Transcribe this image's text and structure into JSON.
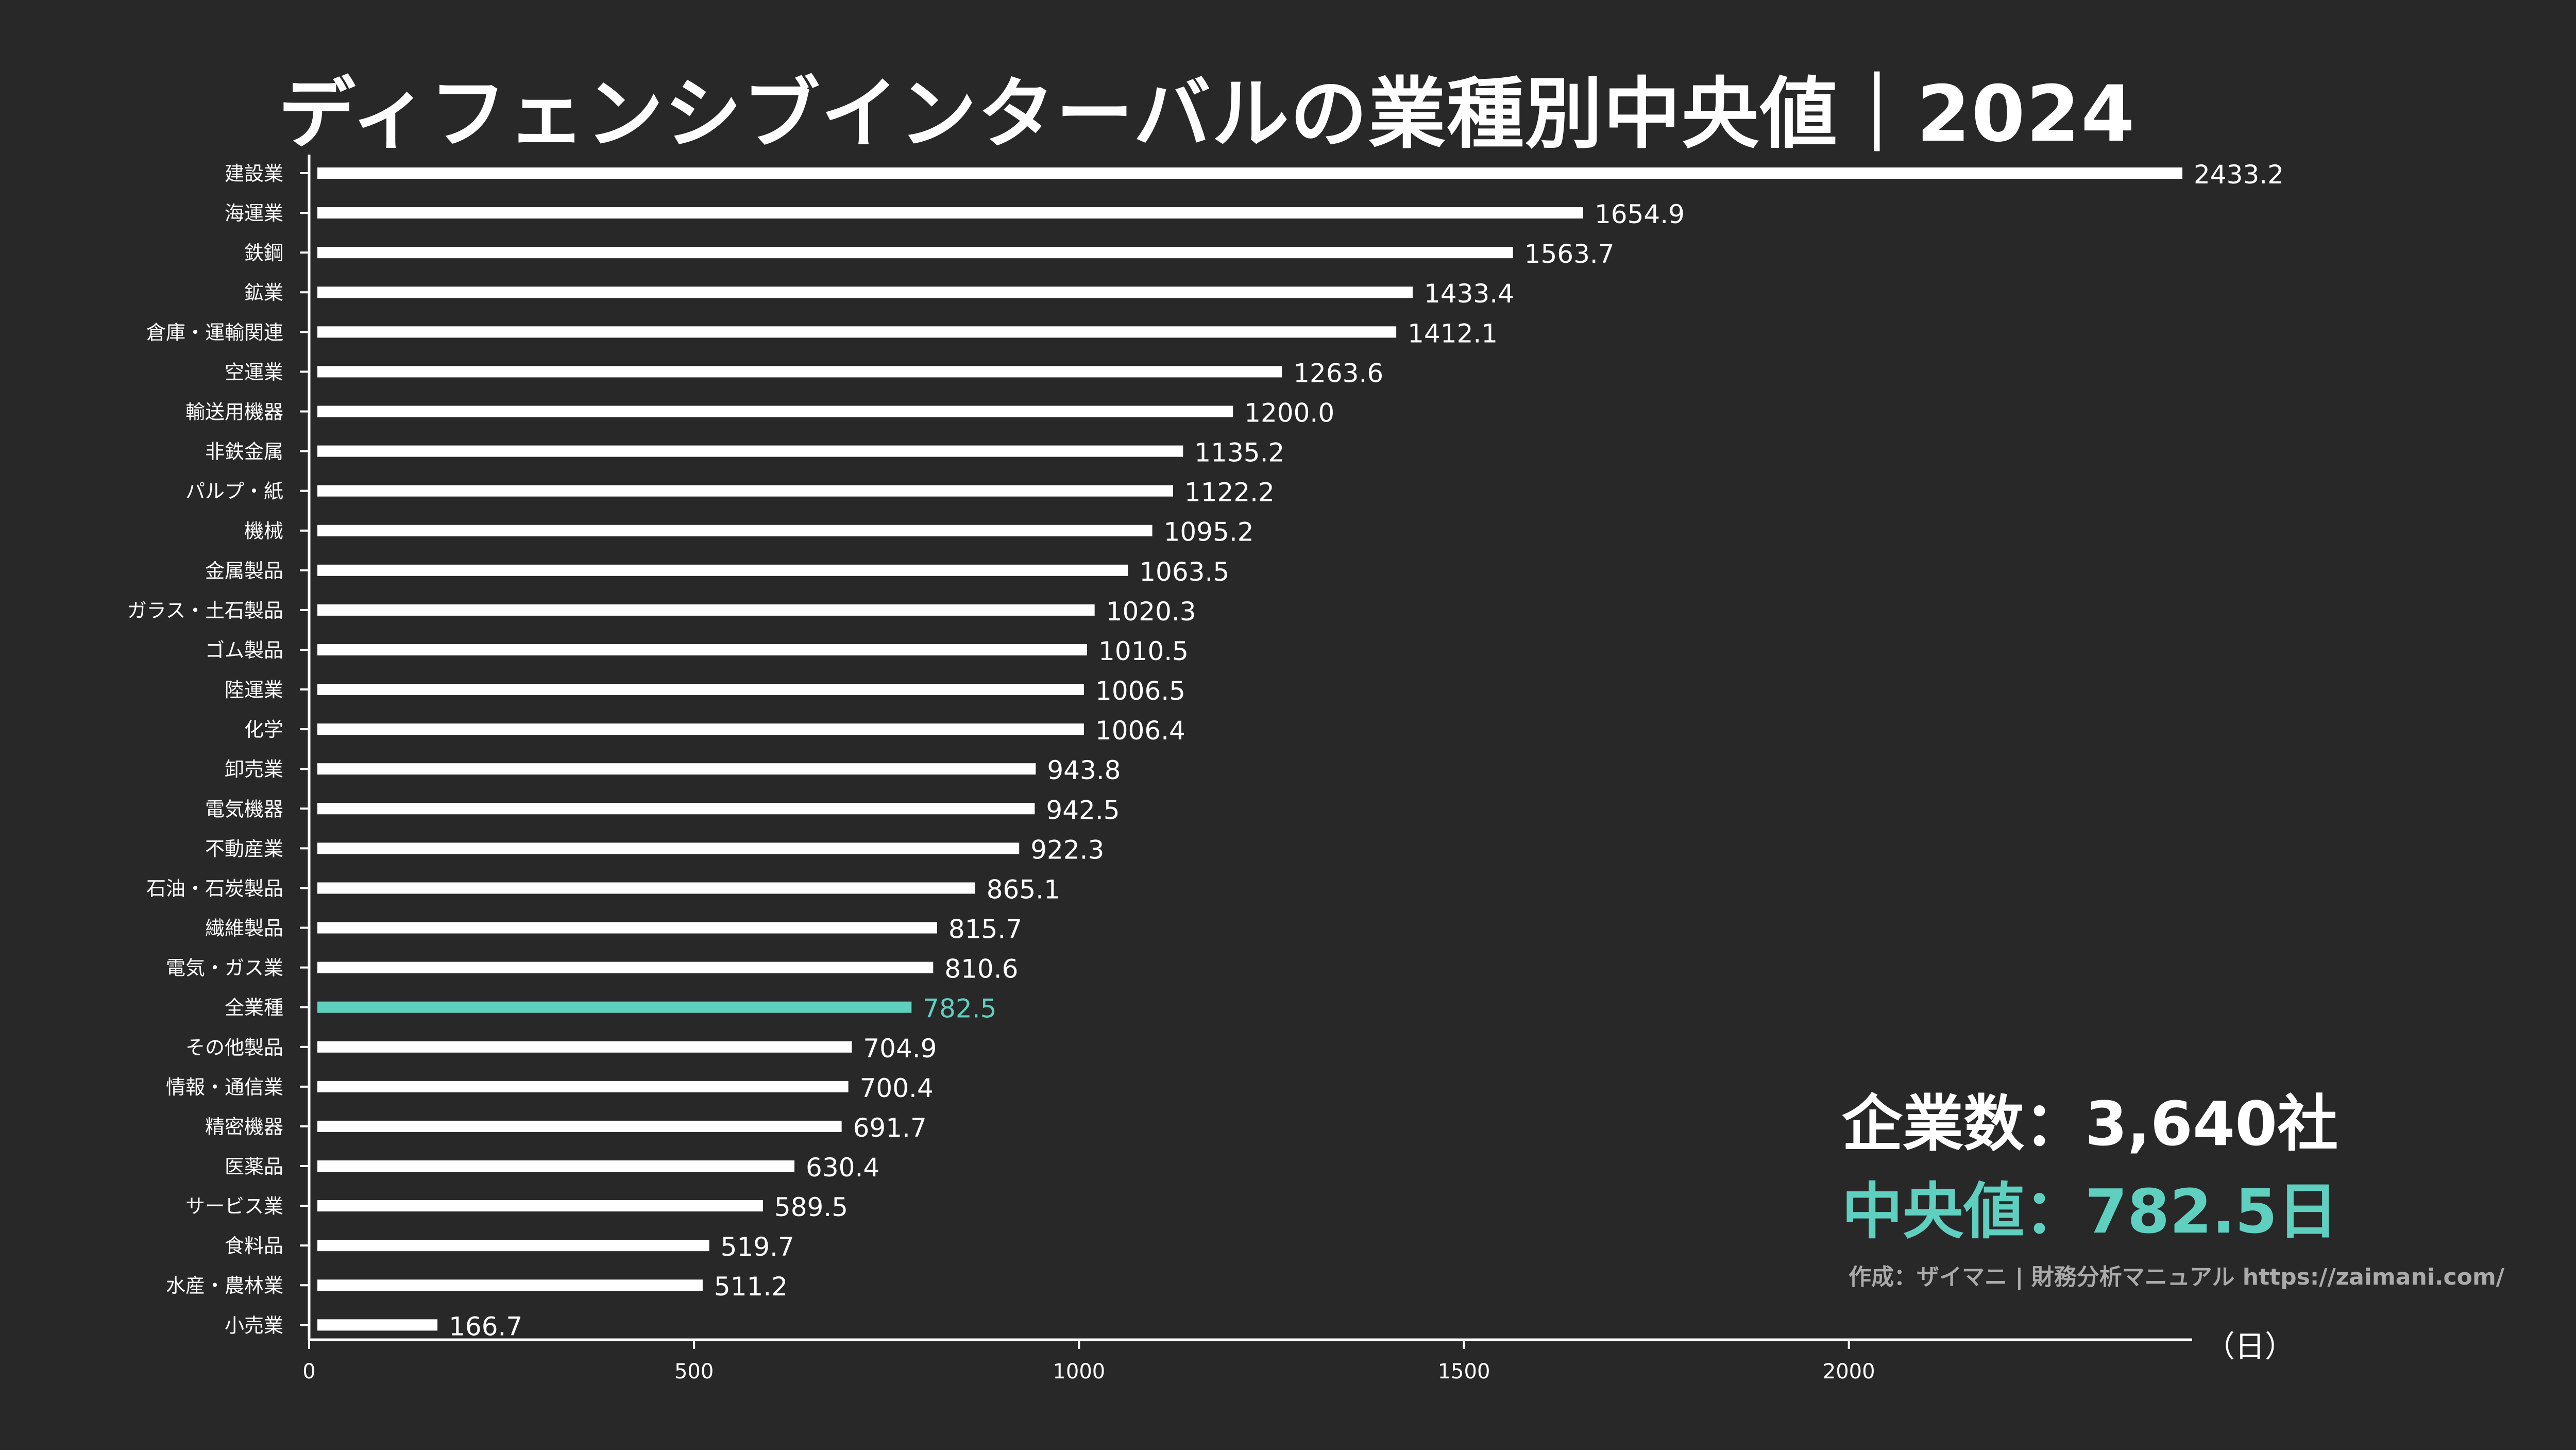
{
  "title": "ディフェンシブインターバルの業種別中央値｜2024",
  "summary": {
    "company_count": "企業数：3,640社",
    "median": "中央値：782.5日"
  },
  "credit": "作成：ザイマニ | 財務分析マニュアル https://zaimani.com/",
  "unit_label": "（日）",
  "colors": {
    "background": "#282828",
    "bar": "#ffffff",
    "highlight": "#5fcfc0",
    "text": "#ffffff"
  },
  "chart_data": {
    "type": "bar",
    "orientation": "horizontal",
    "title": "ディフェンシブインターバルの業種別中央値｜2024",
    "xlabel": "（日）",
    "ylabel": "",
    "xlim": [
      0,
      2433.2
    ],
    "xticks": [
      0,
      500,
      1000,
      1500,
      2000
    ],
    "highlight_category": "全業種",
    "categories": [
      "建設業",
      "海運業",
      "鉄鋼",
      "鉱業",
      "倉庫・運輸関連",
      "空運業",
      "輸送用機器",
      "非鉄金属",
      "パルプ・紙",
      "機械",
      "金属製品",
      "ガラス・土石製品",
      "ゴム製品",
      "陸運業",
      "化学",
      "卸売業",
      "電気機器",
      "不動産業",
      "石油・石炭製品",
      "繊維製品",
      "電気・ガス業",
      "全業種",
      "その他製品",
      "情報・通信業",
      "精密機器",
      "医薬品",
      "サービス業",
      "食料品",
      "水産・農林業",
      "小売業"
    ],
    "values": [
      2433.2,
      1654.9,
      1563.7,
      1433.4,
      1412.1,
      1263.6,
      1200.0,
      1135.2,
      1122.2,
      1095.2,
      1063.5,
      1020.3,
      1010.5,
      1006.5,
      1006.4,
      943.8,
      942.5,
      922.3,
      865.1,
      815.7,
      810.6,
      782.5,
      704.9,
      700.4,
      691.7,
      630.4,
      589.5,
      519.7,
      511.2,
      166.7
    ],
    "value_labels": [
      "2433.2",
      "1654.9",
      "1563.7",
      "1433.4",
      "1412.1",
      "1263.6",
      "1200.0",
      "1135.2",
      "1122.2",
      "1095.2",
      "1063.5",
      "1020.3",
      "1010.5",
      "1006.5",
      "1006.4",
      "943.8",
      "942.5",
      "922.3",
      "865.1",
      "815.7",
      "810.6",
      "782.5",
      "704.9",
      "700.4",
      "691.7",
      "630.4",
      "589.5",
      "519.7",
      "511.2",
      "166.7"
    ]
  }
}
